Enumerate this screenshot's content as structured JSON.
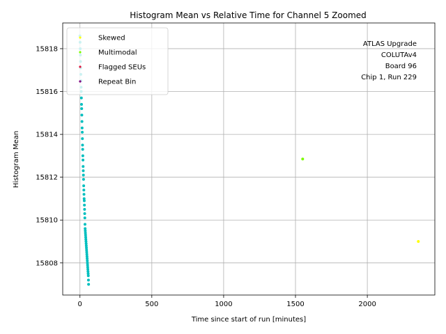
{
  "chart_data": {
    "type": "scatter",
    "title": "Histogram Mean vs Relative Time for Channel 5 Zoomed",
    "xlabel": "Time since start of run [minutes]",
    "ylabel": "Histogram Mean",
    "xlim": [
      -120,
      2470
    ],
    "ylim": [
      15806.5,
      15819.2
    ],
    "xticks": [
      0,
      500,
      1000,
      1500,
      2000
    ],
    "yticks": [
      15808,
      15810,
      15812,
      15814,
      15816,
      15818
    ],
    "grid": true,
    "legend_position": "top-left",
    "legend": [
      {
        "label": "Skewed",
        "color": "#ffff00"
      },
      {
        "label": "Multimodal",
        "color": "#7cfc00"
      },
      {
        "label": "Flagged SEUs",
        "color": "#dc143c"
      },
      {
        "label": "Repeat Bin",
        "color": "#800080"
      }
    ],
    "annotation": [
      "ATLAS Upgrade",
      "COLUTAv4",
      "Board 96",
      "Chip 1, Run 229"
    ],
    "series": [
      {
        "color": "#00bfbf",
        "x": [
          0,
          1,
          2,
          3,
          4,
          5,
          6,
          7,
          8,
          9,
          10,
          11,
          12,
          13,
          14,
          15,
          16,
          17,
          18,
          19,
          20,
          21,
          22,
          23,
          24,
          25,
          26,
          27,
          28,
          29,
          30,
          31,
          32,
          33,
          34,
          35,
          36,
          37,
          38,
          39,
          40,
          41,
          42,
          43,
          44,
          45,
          46,
          47,
          48,
          49,
          50,
          51,
          52,
          53,
          54,
          55,
          56,
          57,
          58,
          59,
          60
        ],
        "y": [
          15818.6,
          15818.3,
          15818.0,
          15817.7,
          15817.4,
          15817.1,
          15816.8,
          15816.5,
          15816.2,
          15816.0,
          15815.7,
          15815.4,
          15815.2,
          15814.9,
          15814.6,
          15814.3,
          15814.1,
          15813.8,
          15813.5,
          15813.3,
          15813.0,
          15812.8,
          15812.5,
          15812.3,
          15812.1,
          15811.9,
          15811.6,
          15811.4,
          15811.2,
          15811.0,
          15810.9,
          15810.7,
          15810.5,
          15810.3,
          15810.1,
          15809.8,
          15809.6,
          15809.5,
          15809.4,
          15809.3,
          15809.2,
          15809.1,
          15809.0,
          15808.9,
          15808.8,
          15808.7,
          15808.6,
          15808.5,
          15808.4,
          15808.3,
          15808.2,
          15808.1,
          15808.0,
          15807.9,
          15807.8,
          15807.7,
          15807.6,
          15807.5,
          15807.4,
          15807.2,
          15807.0
        ]
      },
      {
        "color": "#7cfc00",
        "x": [
          1550
        ],
        "y": [
          15812.85
        ]
      },
      {
        "color": "#ffff00",
        "x": [
          2355
        ],
        "y": [
          15809.0
        ]
      }
    ]
  }
}
